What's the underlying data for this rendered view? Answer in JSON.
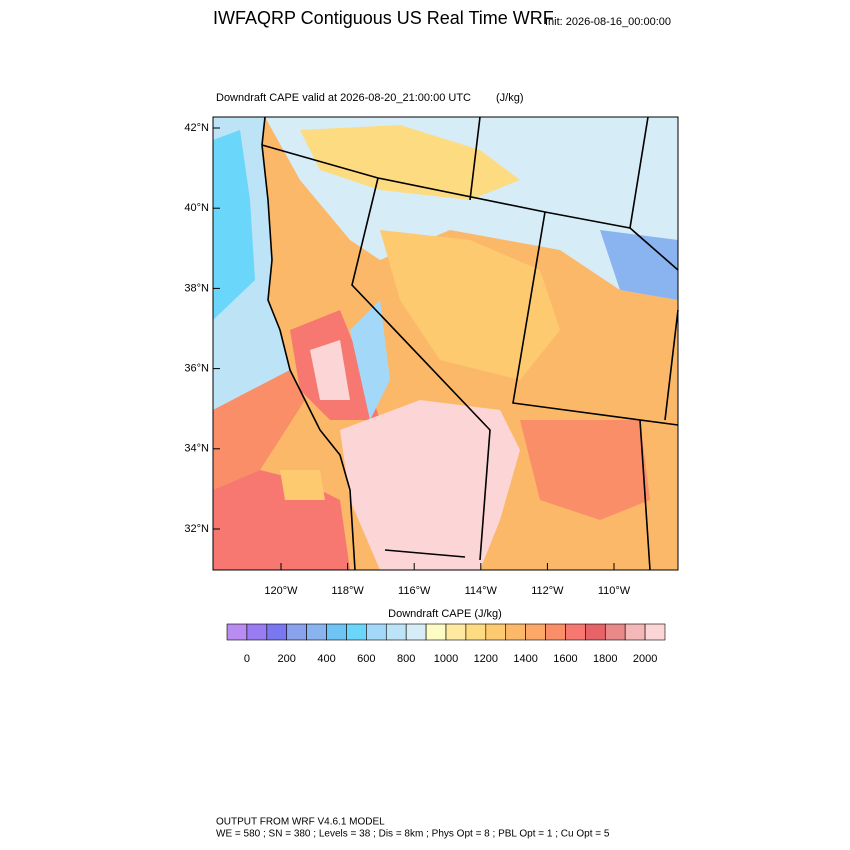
{
  "header": {
    "title": "IWFAQRP Contiguous US Real Time WRF",
    "init": "Init: 2026-08-16_00:00:00"
  },
  "plot": {
    "subtitle": "Downdraft CAPE valid at 2026-08-20_21:00:00 UTC",
    "units": "(J/kg)",
    "lat_labels": [
      "42°N",
      "40°N",
      "38°N",
      "36°N",
      "34°N",
      "32°N"
    ],
    "lon_labels": [
      "120°W",
      "118°W",
      "116°W",
      "114°W",
      "112°W",
      "110°W"
    ]
  },
  "colorbar": {
    "title": "Downdraft CAPE  (J/kg)",
    "colors": [
      "#b88cf0",
      "#9a7cf2",
      "#7a78f0",
      "#8aa2ec",
      "#8ab4f0",
      "#6ec4f4",
      "#6ad6fa",
      "#a4d8f8",
      "#bde3f6",
      "#d6ecf6",
      "#fdfcc4",
      "#fde9a0",
      "#fddb80",
      "#fdca70",
      "#fbb868",
      "#fba868",
      "#f98e68",
      "#f77870",
      "#e66468",
      "#e88a8a",
      "#f4b8b8",
      "#fcd6d6"
    ],
    "tick_labels": [
      "0",
      "200",
      "400",
      "600",
      "800",
      "1000",
      "1200",
      "1400",
      "1600",
      "1800",
      "2000"
    ]
  },
  "footer": {
    "line1": "OUTPUT FROM WRF V4.6.1 MODEL",
    "line2": "WE = 580 ; SN = 380 ; Levels = 38 ; Dis = 8km ; Phys Opt = 8 ; PBL Opt = 1 ; Cu Opt = 5"
  }
}
